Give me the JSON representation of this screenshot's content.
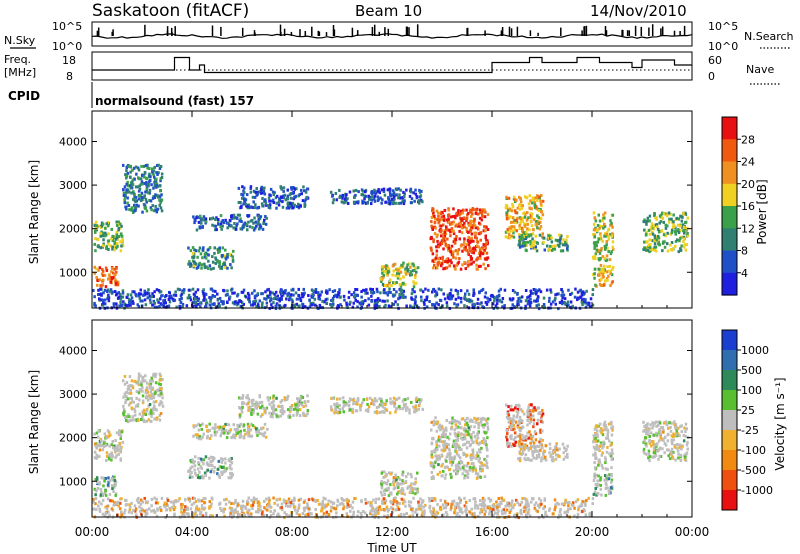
{
  "header": {
    "station": "Saskatoon (fitACF)",
    "beam": "Beam 10",
    "date": "14/Nov/2010"
  },
  "noise_panel": {
    "left_label": "N.Sky",
    "right_label": "N.Search",
    "left_ticks": [
      "10^5",
      "10^0"
    ],
    "right_ticks": [
      "10^5",
      "10^0"
    ]
  },
  "freq_panel": {
    "left_label_line1": "Freq.",
    "left_label_line2": "[MHz]",
    "right_label": "Nave",
    "left_ticks": [
      "18",
      "8"
    ],
    "right_ticks": [
      "60",
      "0"
    ]
  },
  "cpid": {
    "label": "CPID",
    "value": "normalsound (fast) 157"
  },
  "colors": {
    "power": [
      "#1f1fe0",
      "#2050c8",
      "#2f7f72",
      "#3aa04a",
      "#f0d020",
      "#f09020",
      "#ef5a10",
      "#e81010"
    ],
    "velocity": [
      "#1a3fd0",
      "#2f6fb0",
      "#2f8a5a",
      "#58c030",
      "#bebebe",
      "#f0b030",
      "#f08a10",
      "#ef5010",
      "#e81010"
    ],
    "ground_scatter": "#bebebe"
  },
  "chart_data": [
    {
      "type": "heatmap",
      "title": "Power",
      "xlabel": "",
      "ylabel": "Slant Range [km]",
      "x_ticks": [
        "00:00",
        "04:00",
        "08:00",
        "12:00",
        "16:00",
        "20:00",
        "00:00"
      ],
      "y_ticks": [
        1000,
        2000,
        3000,
        4000
      ],
      "ylim": [
        180,
        4700
      ],
      "colorbar": {
        "label": "Power [dB]",
        "ticks": [
          "4",
          "8",
          "12",
          "16",
          "20",
          "24",
          "28"
        ]
      },
      "echo_regions": [
        {
          "t": [
            0.05,
            1.2
          ],
          "r": [
            1500,
            2200
          ],
          "level": 0.45
        },
        {
          "t": [
            0.05,
            1.0
          ],
          "r": [
            700,
            1150
          ],
          "level": 0.75
        },
        {
          "t": [
            1.2,
            2.8
          ],
          "r": [
            2400,
            3500
          ],
          "level": 0.3
        },
        {
          "t": [
            3.8,
            5.6
          ],
          "r": [
            1100,
            1600
          ],
          "level": 0.35
        },
        {
          "t": [
            4.0,
            7.0
          ],
          "r": [
            2000,
            2350
          ],
          "level": 0.25
        },
        {
          "t": [
            5.8,
            8.6
          ],
          "r": [
            2500,
            3000
          ],
          "level": 0.2
        },
        {
          "t": [
            9.5,
            13.2
          ],
          "r": [
            2600,
            2950
          ],
          "level": 0.2
        },
        {
          "t": [
            11.5,
            13.0
          ],
          "r": [
            700,
            1250
          ],
          "level": 0.5
        },
        {
          "t": [
            13.5,
            15.8
          ],
          "r": [
            1100,
            2500
          ],
          "level": 0.85
        },
        {
          "t": [
            16.5,
            18.0
          ],
          "r": [
            1800,
            2800
          ],
          "level": 0.6
        },
        {
          "t": [
            17.0,
            19.0
          ],
          "r": [
            1500,
            1900
          ],
          "level": 0.4
        },
        {
          "t": [
            20.0,
            20.8
          ],
          "r": [
            1300,
            2400
          ],
          "level": 0.55
        },
        {
          "t": [
            20.0,
            20.8
          ],
          "r": [
            700,
            1200
          ],
          "level": 0.6
        },
        {
          "t": [
            22.0,
            23.8
          ],
          "r": [
            1500,
            2400
          ],
          "level": 0.45
        },
        {
          "t": [
            0.0,
            20.0
          ],
          "r": [
            200,
            650
          ],
          "level": 0.15
        }
      ]
    },
    {
      "type": "heatmap",
      "title": "Velocity",
      "xlabel": "Time UT",
      "ylabel": "Slant Range [km]",
      "x_ticks": [
        "00:00",
        "04:00",
        "08:00",
        "12:00",
        "16:00",
        "20:00",
        "00:00"
      ],
      "y_ticks": [
        1000,
        2000,
        3000,
        4000
      ],
      "ylim": [
        180,
        4700
      ],
      "colorbar": {
        "label": "Velocity [m s⁻¹]",
        "ticks": [
          "1000",
          "500",
          "100",
          "25",
          "-25",
          "-100",
          "-500",
          "-1000"
        ]
      },
      "echo_regions": [
        {
          "t": [
            0.05,
            1.2
          ],
          "r": [
            1500,
            2200
          ],
          "level": 0.5
        },
        {
          "t": [
            0.05,
            1.0
          ],
          "r": [
            700,
            1150
          ],
          "level": 0.3
        },
        {
          "t": [
            1.2,
            2.8
          ],
          "r": [
            2400,
            3500
          ],
          "level": 0.5
        },
        {
          "t": [
            3.8,
            5.6
          ],
          "r": [
            1100,
            1600
          ],
          "level": 0.35
        },
        {
          "t": [
            4.0,
            7.0
          ],
          "r": [
            2000,
            2350
          ],
          "level": 0.5
        },
        {
          "t": [
            5.8,
            8.6
          ],
          "r": [
            2500,
            3000
          ],
          "level": 0.5
        },
        {
          "t": [
            9.5,
            13.2
          ],
          "r": [
            2600,
            2950
          ],
          "level": 0.5
        },
        {
          "t": [
            11.5,
            13.0
          ],
          "r": [
            700,
            1250
          ],
          "level": 0.5
        },
        {
          "t": [
            13.5,
            15.8
          ],
          "r": [
            1100,
            2500
          ],
          "level": 0.5
        },
        {
          "t": [
            16.5,
            18.0
          ],
          "r": [
            1800,
            2800
          ],
          "level": 0.8
        },
        {
          "t": [
            17.0,
            19.0
          ],
          "r": [
            1500,
            1900
          ],
          "level": 0.6
        },
        {
          "t": [
            20.0,
            20.8
          ],
          "r": [
            1300,
            2400
          ],
          "level": 0.5
        },
        {
          "t": [
            20.0,
            20.8
          ],
          "r": [
            700,
            1200
          ],
          "level": 0.35
        },
        {
          "t": [
            22.0,
            23.8
          ],
          "r": [
            1500,
            2400
          ],
          "level": 0.5
        },
        {
          "t": [
            0.0,
            20.0
          ],
          "r": [
            200,
            650
          ],
          "level": 0.65
        }
      ]
    }
  ]
}
